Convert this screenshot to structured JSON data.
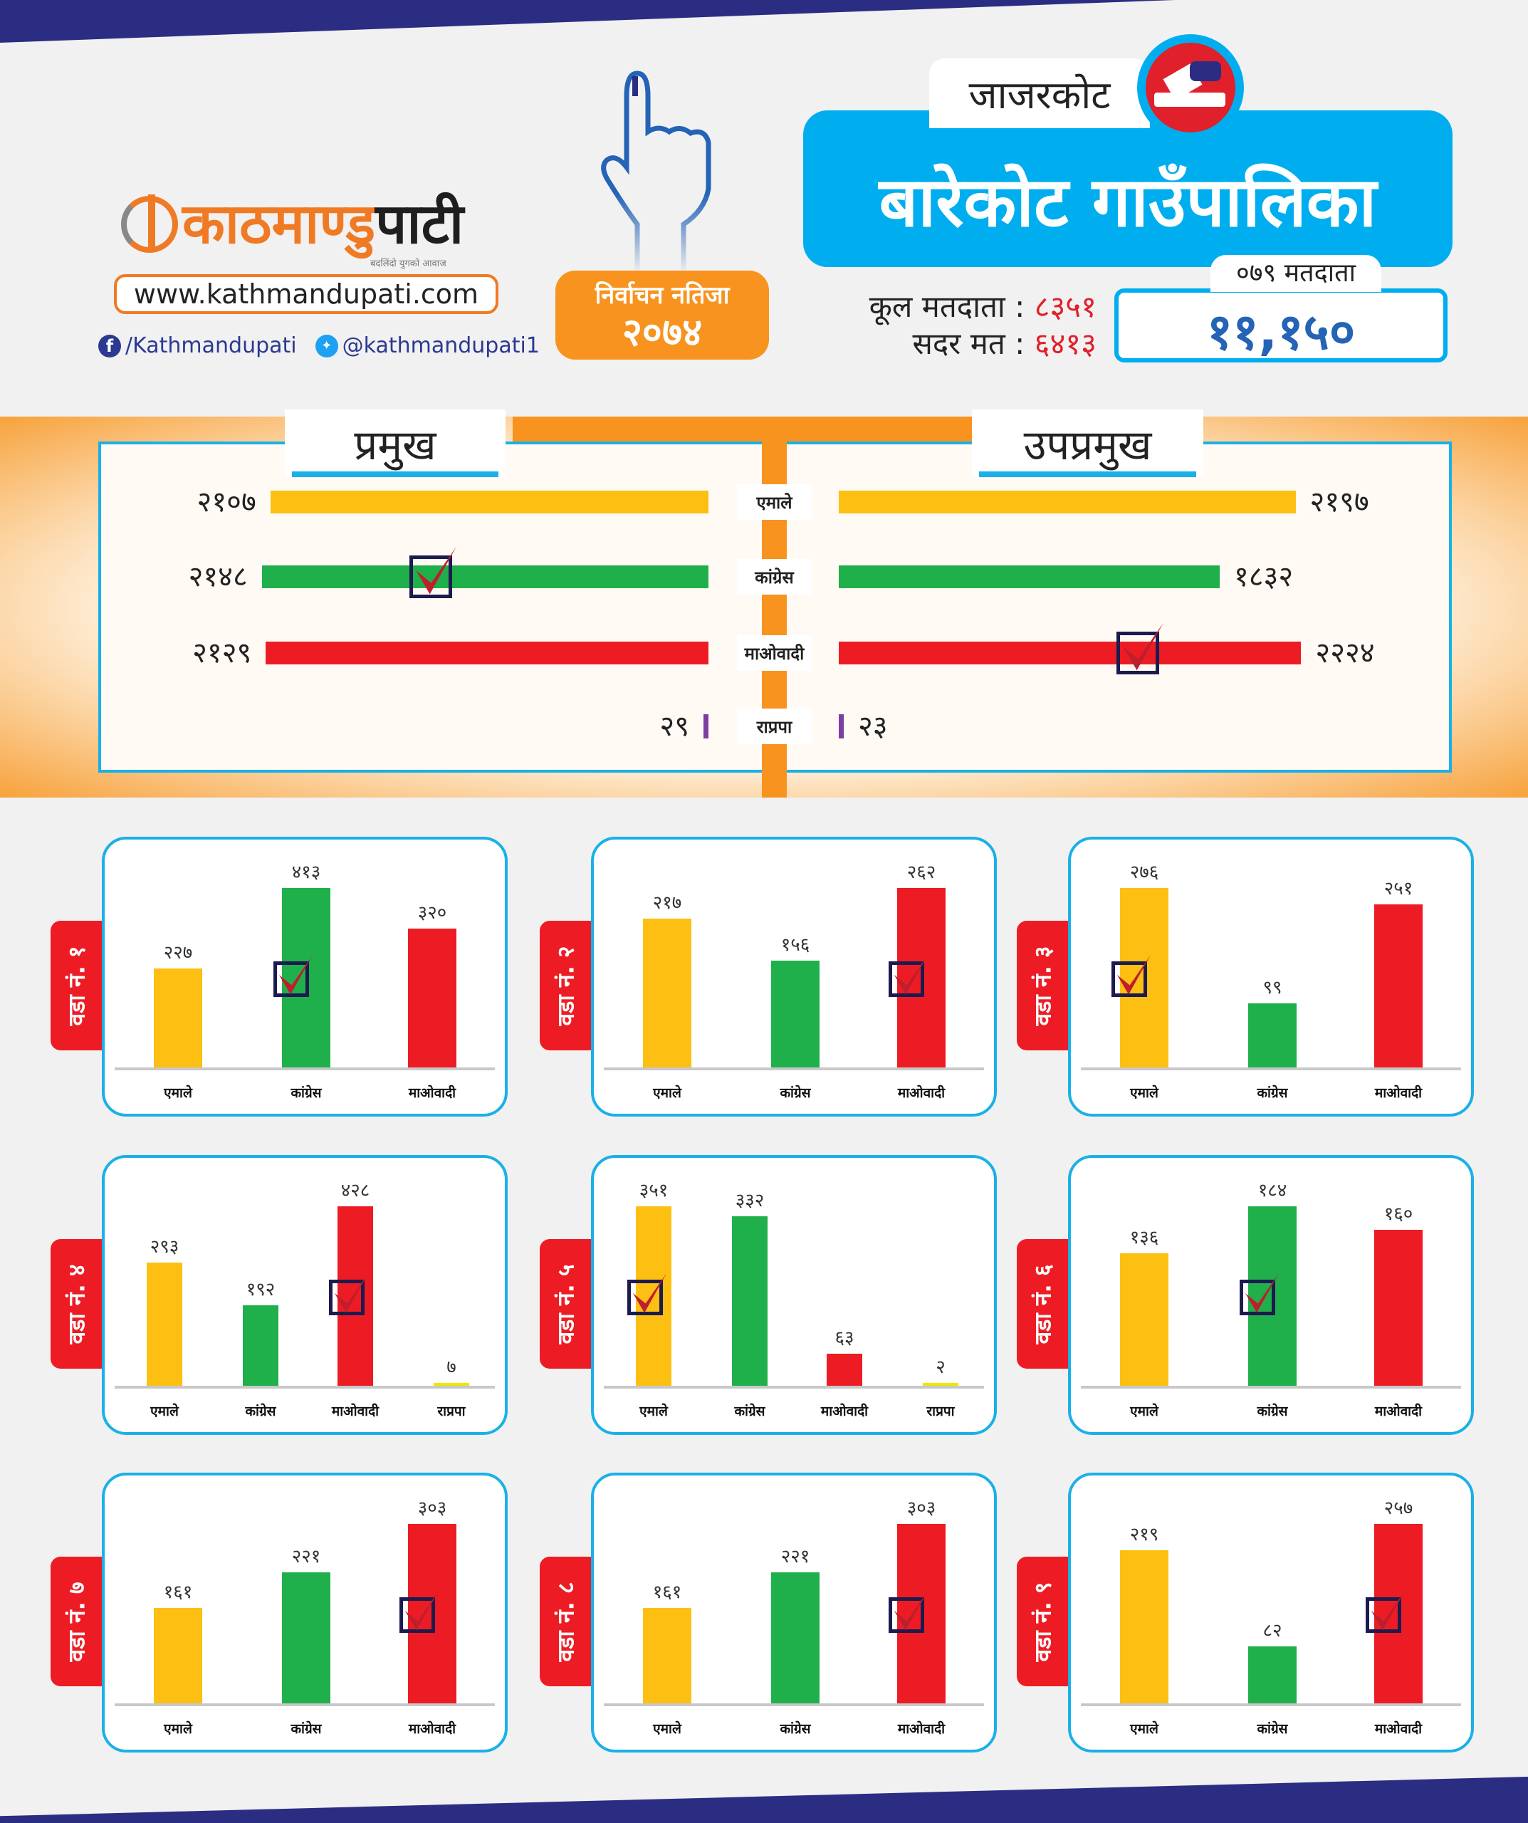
{
  "header": {
    "logo": {
      "name_part1": "काठमाण्डु",
      "name_part2": "पाटी",
      "tagline": "बदलिंदो युगको आवाज"
    },
    "website": "www.kathmandupati.com",
    "facebook": "/Kathmandupati",
    "twitter": "@kathmandupati1",
    "election_badge": {
      "title": "निर्वाचन नतिजा",
      "year": "२०७४"
    },
    "district": "जाजरकोट",
    "municipality": "बारेकोट गाउँपालिका",
    "stats": {
      "total_voters_label": "कूल मतदाता :",
      "total_voters": "८३५१",
      "valid_votes_label": "सदर मत :",
      "valid_votes": "६४१३"
    },
    "voters_079": {
      "label": "०७९ मतदाता",
      "value": "११,१५०"
    }
  },
  "colors": {
    "एमाले": "#fdbf12",
    "कांग्रेस": "#20b04b",
    "माओवादी": "#ed1c24",
    "राप्रपा": "#7b3fa0",
    "accent_blue": "#00aeef",
    "accent_orange": "#f7931e",
    "navy": "#2b2d83"
  },
  "summary": {
    "mayor_title": "प्रमुख",
    "deputy_title": "उपप्रमुख",
    "mayor_winner": "कांग्रेस",
    "deputy_winner": "माओवादी",
    "parties": [
      {
        "name": "एमाले",
        "mayor": 2107,
        "deputy": 2197
      },
      {
        "name": "कांग्रेस",
        "mayor": 2148,
        "deputy": 1832
      },
      {
        "name": "माओवादी",
        "mayor": 2129,
        "deputy": 2224
      },
      {
        "name": "राप्रपा",
        "mayor": 29,
        "deputy": 23
      }
    ]
  },
  "chart_data": [
    {
      "type": "bar",
      "title": "वडा नं. १",
      "categories": [
        "एमाले",
        "कांग्रेस",
        "माओवादी"
      ],
      "values": [
        227,
        413,
        320
      ],
      "winner": "कांग्रेस"
    },
    {
      "type": "bar",
      "title": "वडा नं. २",
      "categories": [
        "एमाले",
        "कांग्रेस",
        "माओवादी"
      ],
      "values": [
        217,
        156,
        262
      ],
      "winner": "माओवादी"
    },
    {
      "type": "bar",
      "title": "वडा नं. ३",
      "categories": [
        "एमाले",
        "कांग्रेस",
        "माओवादी"
      ],
      "values": [
        276,
        99,
        251
      ],
      "winner": "एमाले"
    },
    {
      "type": "bar",
      "title": "वडा नं. ४",
      "categories": [
        "एमाले",
        "कांग्रेस",
        "माओवादी",
        "राप्रपा"
      ],
      "values": [
        293,
        192,
        428,
        7
      ],
      "winner": "माओवादी"
    },
    {
      "type": "bar",
      "title": "वडा नं. ५",
      "categories": [
        "एमाले",
        "कांग्रेस",
        "माओवादी",
        "राप्रपा"
      ],
      "values": [
        351,
        332,
        63,
        2
      ],
      "winner": "एमाले"
    },
    {
      "type": "bar",
      "title": "वडा नं. ६",
      "categories": [
        "एमाले",
        "कांग्रेस",
        "माओवादी"
      ],
      "values": [
        136,
        184,
        160
      ],
      "winner": "कांग्रेस"
    },
    {
      "type": "bar",
      "title": "वडा नं. ७",
      "categories": [
        "एमाले",
        "कांग्रेस",
        "माओवादी"
      ],
      "values": [
        161,
        221,
        303
      ],
      "winner": "माओवादी"
    },
    {
      "type": "bar",
      "title": "वडा नं. ८",
      "categories": [
        "एमाले",
        "कांग्रेस",
        "माओवादी"
      ],
      "values": [
        161,
        221,
        303
      ],
      "winner": "माओवादी"
    },
    {
      "type": "bar",
      "title": "वडा नं. ९",
      "categories": [
        "एमाले",
        "कांग्रेस",
        "माओवादी"
      ],
      "values": [
        219,
        82,
        257
      ],
      "winner": "माओवादी"
    }
  ]
}
